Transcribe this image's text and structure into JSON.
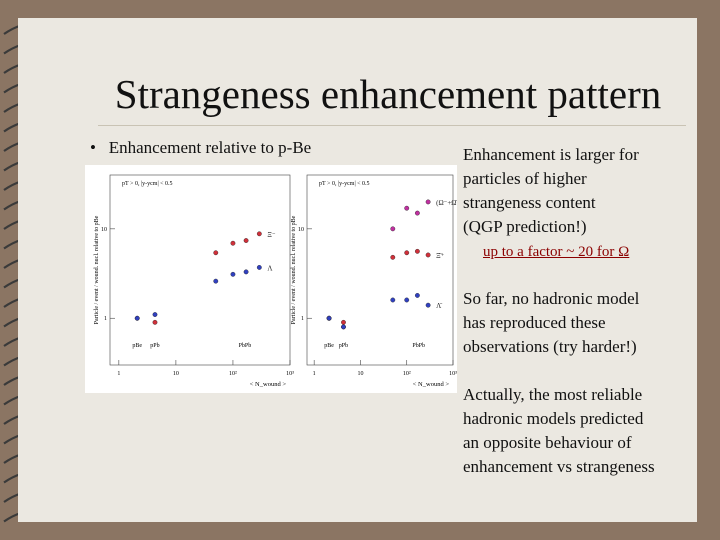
{
  "title": "Strangeness enhancement pattern",
  "bullet": "Enhancement relative to p-Be",
  "notes": [
    {
      "lines": [
        "Enhancement is larger for",
        "particles of higher",
        "strangeness content",
        "(QGP prediction!)"
      ]
    },
    {
      "lines": [
        "up to a factor ~ 20 for Ω"
      ]
    },
    {
      "lines": [
        "So far, no hadronic model",
        "has reproduced these",
        "observations (try harder!)"
      ]
    },
    {
      "lines": [
        "Actually, the most reliable",
        "hadronic models predicted",
        "an opposite behaviour of",
        "enhancement vs strangeness"
      ]
    }
  ],
  "figure": {
    "type": "scatter",
    "log_x": true,
    "log_y": true,
    "xlim": [
      0.7,
      1000
    ],
    "ylim": [
      0.3,
      40
    ],
    "xticks": [
      1,
      10,
      {
        "value": 100,
        "label": "10²"
      },
      {
        "value": 1000,
        "label": "10³"
      }
    ],
    "yticks": [
      1,
      10
    ],
    "y_label": "Particle / event / wound. nucl. relative to pBe",
    "x_label": "< N_wound >",
    "systems": [
      "pBe",
      "pPb",
      "PbPb"
    ],
    "panels": [
      {
        "cut": "pT > 0,  |y-ycm| < 0.5",
        "series": [
          {
            "name": "Ξ⁻",
            "color": "#d0303a",
            "x": [
              2.1,
              4.3,
              50,
              100,
              170,
              290
            ],
            "values": [
              1,
              0.9,
              5.4,
              6.9,
              7.4,
              8.8
            ]
          },
          {
            "name": "Λ",
            "color": "#3040c0",
            "x": [
              2.1,
              4.3,
              50,
              100,
              170,
              290
            ],
            "values": [
              1,
              1.1,
              2.6,
              3.1,
              3.3,
              3.7
            ]
          }
        ]
      },
      {
        "cut": "pT > 0,  |y-ycm| < 0.5",
        "series": [
          {
            "name": "(Ω⁻+Ω̄⁺)",
            "color": "#c030a0",
            "x": [
              2.1,
              4.3,
              50,
              100,
              170,
              290
            ],
            "values": [
              1,
              0.8,
              10,
              17,
              15,
              20
            ]
          },
          {
            "name": "Ξ̄⁺",
            "color": "#d0303a",
            "x": [
              2.1,
              4.3,
              50,
              100,
              170,
              290
            ],
            "values": [
              1,
              0.9,
              4.8,
              5.4,
              5.6,
              5.1
            ]
          },
          {
            "name": "Λ̄",
            "color": "#3040c0",
            "x": [
              2.1,
              4.3,
              50,
              100,
              170,
              290
            ],
            "values": [
              1,
              0.8,
              1.6,
              1.6,
              1.8,
              1.4
            ]
          }
        ]
      }
    ]
  }
}
